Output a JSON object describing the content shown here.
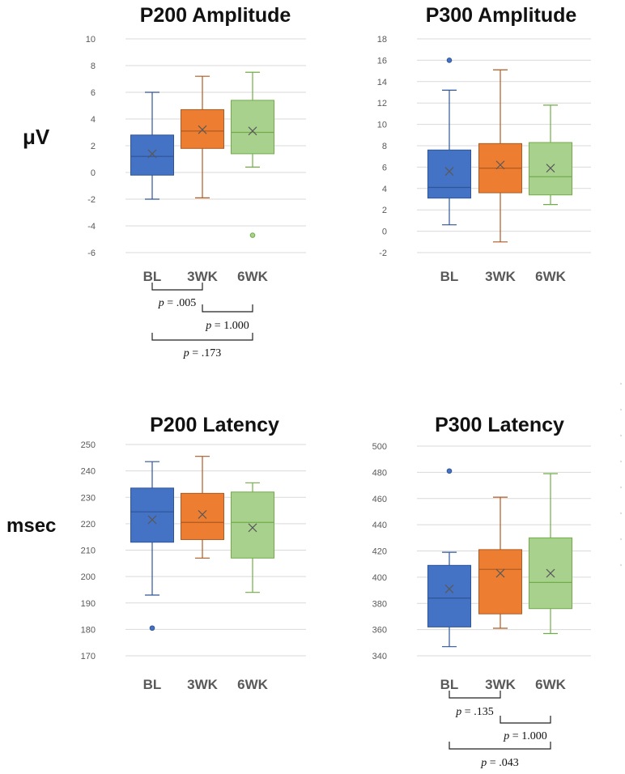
{
  "unit_labels": {
    "amplitude": "μV",
    "latency": "msec"
  },
  "colors": {
    "BL": "#4472c4",
    "3WK": "#ed7d31",
    "6WK": "#a9d18e",
    "BL_dark": "#2f5597",
    "3WK_dark": "#ae5a21",
    "6WK_dark": "#70ad47"
  },
  "chart_data": [
    {
      "type": "box",
      "title": "P200 Amplitude",
      "categories": [
        "BL",
        "3WK",
        "6WK"
      ],
      "ylim": [
        -6,
        10
      ],
      "yticks": [
        -6,
        -4,
        -2,
        0,
        2,
        4,
        6,
        8,
        10
      ],
      "series": [
        {
          "name": "BL",
          "min": -2.0,
          "q1": -0.2,
          "median": 1.2,
          "q3": 2.8,
          "max": 6.0,
          "mean": 1.4,
          "outliers": []
        },
        {
          "name": "3WK",
          "min": -1.9,
          "q1": 1.8,
          "median": 3.1,
          "q3": 4.7,
          "max": 7.2,
          "mean": 3.2,
          "outliers": []
        },
        {
          "name": "6WK",
          "min": 0.4,
          "q1": 1.4,
          "median": 3.0,
          "q3": 5.4,
          "max": 7.5,
          "mean": 3.1,
          "outliers": [
            -4.7
          ]
        }
      ],
      "comparisons": [
        {
          "from": 0,
          "to": 1,
          "label": "p = .005"
        },
        {
          "from": 1,
          "to": 2,
          "label": "p = 1.000"
        },
        {
          "from": 0,
          "to": 2,
          "label": "p = .173"
        }
      ]
    },
    {
      "type": "box",
      "title": "P300 Amplitude",
      "categories": [
        "BL",
        "3WK",
        "6WK"
      ],
      "ylim": [
        -2,
        18
      ],
      "yticks": [
        -2,
        0,
        2,
        4,
        6,
        8,
        10,
        12,
        14,
        16,
        18
      ],
      "series": [
        {
          "name": "BL",
          "min": 0.6,
          "q1": 3.1,
          "median": 4.1,
          "q3": 7.6,
          "max": 13.2,
          "mean": 5.6,
          "outliers": [
            16.0
          ]
        },
        {
          "name": "3WK",
          "min": -1.0,
          "q1": 3.6,
          "median": 5.9,
          "q3": 8.2,
          "max": 15.1,
          "mean": 6.2,
          "outliers": []
        },
        {
          "name": "6WK",
          "min": 2.5,
          "q1": 3.4,
          "median": 5.1,
          "q3": 8.3,
          "max": 11.8,
          "mean": 5.9,
          "outliers": []
        }
      ],
      "comparisons": []
    },
    {
      "type": "box",
      "title": "P200 Latency",
      "categories": [
        "BL",
        "3WK",
        "6WK"
      ],
      "ylim": [
        170,
        250
      ],
      "yticks": [
        170,
        180,
        190,
        200,
        210,
        220,
        230,
        240,
        250
      ],
      "series": [
        {
          "name": "BL",
          "min": 193,
          "q1": 213,
          "median": 224.5,
          "q3": 233.5,
          "max": 243.5,
          "mean": 221.5,
          "outliers": [
            180.5
          ]
        },
        {
          "name": "3WK",
          "min": 207,
          "q1": 214,
          "median": 220.5,
          "q3": 231.5,
          "max": 245.5,
          "mean": 223.5,
          "outliers": []
        },
        {
          "name": "6WK",
          "min": 194,
          "q1": 207,
          "median": 220.5,
          "q3": 232,
          "max": 235.5,
          "mean": 218.5,
          "outliers": []
        }
      ],
      "comparisons": []
    },
    {
      "type": "box",
      "title": "P300 Latency",
      "categories": [
        "BL",
        "3WK",
        "6WK"
      ],
      "ylim": [
        340,
        500
      ],
      "yticks": [
        340,
        360,
        380,
        400,
        420,
        440,
        460,
        480,
        500
      ],
      "series": [
        {
          "name": "BL",
          "min": 347,
          "q1": 362,
          "median": 384,
          "q3": 409,
          "max": 419,
          "mean": 391,
          "outliers": [
            481
          ]
        },
        {
          "name": "3WK",
          "min": 361,
          "q1": 372,
          "median": 406,
          "q3": 421,
          "max": 461,
          "mean": 403,
          "outliers": []
        },
        {
          "name": "6WK",
          "min": 357,
          "q1": 376,
          "median": 396,
          "q3": 430,
          "max": 479,
          "mean": 403,
          "outliers": []
        }
      ],
      "comparisons": [
        {
          "from": 0,
          "to": 1,
          "label": "p = .135"
        },
        {
          "from": 1,
          "to": 2,
          "label": "p = 1.000"
        },
        {
          "from": 0,
          "to": 2,
          "label": "p = .043"
        }
      ]
    }
  ]
}
